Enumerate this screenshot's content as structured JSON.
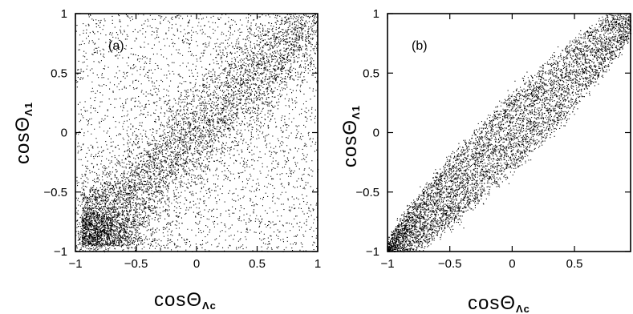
{
  "chart_data": [
    {
      "type": "scatter",
      "panel_label": "(a)",
      "xlabel": {
        "base": "cosΘ",
        "sub": "Λc"
      },
      "ylabel": {
        "base": "cosΘ",
        "sub": "Λ1"
      },
      "xlim": [
        -1,
        1
      ],
      "ylim": [
        -1,
        1
      ],
      "xticks": [
        -1,
        -0.5,
        0,
        0.5,
        1
      ],
      "yticks": [
        -1,
        -0.5,
        0,
        0.5,
        1
      ],
      "xtick_labels": [
        "−1",
        "−0.5",
        "0",
        "0.5",
        "1"
      ],
      "ytick_labels": [
        "−1",
        "−0.5",
        "0",
        "0.5",
        "1"
      ],
      "grid": false,
      "distribution": {
        "trend": "y = x",
        "core_spread": 0.22,
        "core_fraction": 0.65,
        "background": "uniform over [-1,1]x[-1,1]",
        "n_points": 9000
      }
    },
    {
      "type": "scatter",
      "panel_label": "(b)",
      "xlabel": {
        "base": "cosΘ",
        "sub": "Λc"
      },
      "ylabel": {
        "base": "cosΘ",
        "sub": "Λ1"
      },
      "xlim": [
        -1,
        0.95
      ],
      "ylim": [
        -1,
        1
      ],
      "xticks": [
        -1,
        -0.5,
        0,
        0.5
      ],
      "yticks": [
        -1,
        -0.5,
        0,
        0.5,
        1
      ],
      "xtick_labels": [
        "−1",
        "−0.5",
        "0",
        "0.5"
      ],
      "ytick_labels": [
        "−1",
        "−0.5",
        "0",
        "0.5",
        "1"
      ],
      "grid": false,
      "distribution": {
        "trend": "y = x",
        "band_halfwidth_max": 0.32,
        "band_shape": "narrows at both ends",
        "n_points": 6500
      }
    }
  ]
}
